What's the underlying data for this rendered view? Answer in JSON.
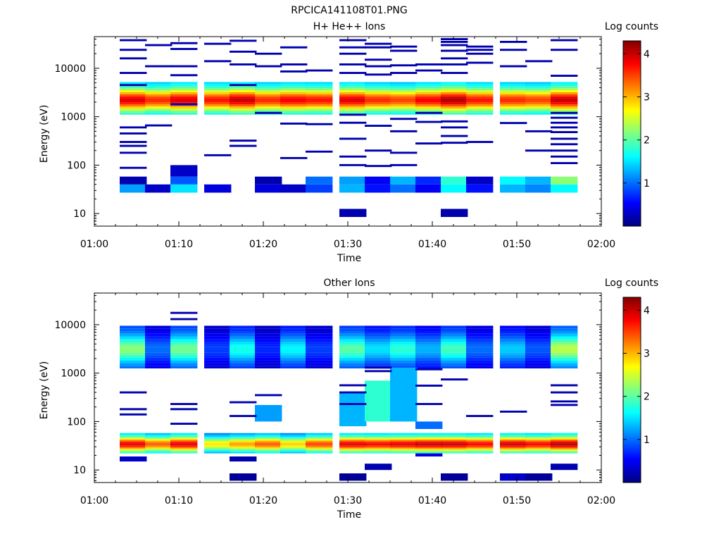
{
  "figure": {
    "title": "RPCICA141108T01.PNG"
  },
  "colormap": [
    "#000080",
    "#0000ff",
    "#0080ff",
    "#00ffff",
    "#80ff80",
    "#ffff00",
    "#ff8000",
    "#ff0000",
    "#800000"
  ],
  "chart_data": [
    {
      "type": "heatmap",
      "title": "H+ He++ Ions",
      "xlabel": "Time",
      "ylabel": "Energy (eV)",
      "xlim": [
        "01:00",
        "02:00"
      ],
      "xticks": [
        "01:00",
        "01:10",
        "01:20",
        "01:30",
        "01:40",
        "01:50",
        "02:00"
      ],
      "yscale": "log",
      "ylim": [
        5.5,
        45000
      ],
      "yticks": [
        "10",
        "100",
        "1000",
        "10000"
      ],
      "colorbar": {
        "label": "Log counts",
        "range": [
          0,
          4.3
        ],
        "ticks": [
          "1",
          "2",
          "3",
          "4"
        ]
      },
      "time_bins_start": [
        "01:03",
        "01:06",
        "01:09",
        "01:13",
        "01:16",
        "01:19",
        "01:22",
        "01:25",
        "01:29",
        "01:32",
        "01:35",
        "01:38",
        "01:41",
        "01:44",
        "01:48",
        "01:51",
        "01:54"
      ],
      "time_bin_minutes": 3.2,
      "core": {
        "energy_range_eV": [
          1100,
          5200
        ],
        "peak_log_counts_by_bin": [
          3.9,
          3.6,
          3.9,
          3.7,
          4.0,
          3.6,
          3.8,
          3.7,
          3.9,
          3.6,
          3.5,
          3.8,
          4.1,
          3.7,
          3.6,
          3.5,
          4.0
        ]
      },
      "low_energy_band": {
        "log_counts_by_bin": [
          {
            "range_eV": [
              27,
              40
            ],
            "log_counts": [
              1.2,
              0.3,
              1.5,
              0.4,
              0,
              0.4,
              0.3,
              0.8,
              1.3,
              0.6,
              1.0,
              0.5,
              1.6,
              0.6,
              1.3,
              1.1,
              1.6
            ]
          },
          {
            "range_eV": [
              40,
              58
            ],
            "log_counts": [
              0.2,
              0,
              0.9,
              0,
              0,
              0.2,
              0,
              1.0,
              1.2,
              0.5,
              1.3,
              0.7,
              1.8,
              0.3,
              1.6,
              1.3,
              2.2
            ]
          }
        ]
      },
      "sporadic_log_counts": 0.2,
      "sporadic_energy_bins_eV_by_bin": [
        [
          38000,
          24000,
          16000,
          8000,
          4500,
          600,
          450,
          300,
          250,
          180,
          88
        ],
        [
          30000,
          11000,
          660
        ],
        [
          33000,
          25000,
          11000,
          7200,
          1800
        ],
        [
          32000,
          14000,
          160
        ],
        [
          37000,
          22000,
          12000,
          4500,
          320,
          250
        ],
        [
          20000,
          11000,
          1200
        ],
        [
          27000,
          12000,
          8600,
          720,
          140
        ],
        [
          9000,
          700,
          190
        ],
        [
          38000,
          27000,
          20000,
          12000,
          8000,
          1100,
          750,
          350,
          150,
          100
        ],
        [
          32000,
          27000,
          15000,
          11000,
          7400,
          650,
          200,
          96
        ],
        [
          28000,
          23000,
          11500,
          8000,
          900,
          500,
          180,
          100
        ],
        [
          12000,
          9000,
          1200,
          780,
          280
        ],
        [
          40000,
          35000,
          30000,
          23000,
          16000,
          12000,
          8000,
          800,
          600,
          400,
          290
        ],
        [
          28000,
          24000,
          20000,
          13000,
          300
        ],
        [
          35000,
          24000,
          11000,
          740
        ],
        [
          14000,
          500,
          200
        ],
        [
          38000,
          24000,
          7000,
          1200,
          950,
          750,
          600,
          480,
          350,
          270,
          200,
          150,
          110
        ]
      ],
      "additional_cells": [
        {
          "bin": 2,
          "range_eV": [
            58,
            100
          ],
          "log_counts": 0.3
        },
        {
          "bin": 8,
          "range_eV": [
            8.5,
            12.5
          ],
          "log_counts": 0.2
        },
        {
          "bin": 12,
          "range_eV": [
            8.5,
            12.5
          ],
          "log_counts": 0.2
        }
      ]
    },
    {
      "type": "heatmap",
      "title": "Other Ions",
      "xlabel": "Time",
      "ylabel": "Energy (eV)",
      "xlim": [
        "01:00",
        "02:00"
      ],
      "xticks": [
        "01:00",
        "01:10",
        "01:20",
        "01:30",
        "01:40",
        "01:50",
        "02:00"
      ],
      "yscale": "log",
      "ylim": [
        5.5,
        45000
      ],
      "yticks": [
        "10",
        "100",
        "1000",
        "10000"
      ],
      "colorbar": {
        "label": "Log counts",
        "range": [
          0,
          4.3
        ],
        "ticks": [
          "1",
          "2",
          "3",
          "4"
        ]
      },
      "time_bins_start": [
        "01:03",
        "01:06",
        "01:09",
        "01:13",
        "01:16",
        "01:19",
        "01:22",
        "01:25",
        "01:29",
        "01:32",
        "01:35",
        "01:38",
        "01:41",
        "01:44",
        "01:48",
        "01:51",
        "01:54"
      ],
      "time_bin_minutes": 3.2,
      "low_energy_core": {
        "energy_range_eV": [
          22,
          58
        ],
        "peak_log_counts_by_bin": [
          3.9,
          3.4,
          3.9,
          2.8,
          3.1,
          3.4,
          2.9,
          3.5,
          3.9,
          3.8,
          3.9,
          4.0,
          4.0,
          3.8,
          4.0,
          3.8,
          4.1
        ]
      },
      "high_energy_band": {
        "energy_range_eV": [
          1250,
          9500
        ],
        "peak_log_counts_by_bin": [
          2.2,
          1.0,
          2.1,
          0.8,
          1.7,
          0.7,
          1.6,
          0.8,
          2.0,
          1.5,
          1.8,
          1.3,
          1.9,
          1.0,
          1.4,
          0.9,
          2.4
        ]
      },
      "mid_energy_cells": [
        {
          "bin": 5,
          "range_eV": [
            100,
            220
          ],
          "log_counts": 1.2
        },
        {
          "bin": 8,
          "range_eV": [
            80,
            400
          ],
          "log_counts": 1.3
        },
        {
          "bin": 9,
          "range_eV": [
            100,
            700
          ],
          "log_counts": 1.8
        },
        {
          "bin": 10,
          "range_eV": [
            100,
            1300
          ],
          "log_counts": 1.3
        },
        {
          "bin": 11,
          "range_eV": [
            70,
            100
          ],
          "log_counts": 1.0
        }
      ],
      "sporadic_log_counts": 0.2,
      "sporadic_energy_bins_eV_by_bin": [
        [
          400,
          180,
          140
        ],
        [],
        [
          17500,
          13000,
          230,
          180,
          90
        ],
        [],
        [
          250,
          130
        ],
        [
          350
        ],
        [],
        [],
        [
          560,
          400,
          230
        ],
        [
          1300,
          1100
        ],
        [],
        [
          1200,
          550,
          230
        ],
        [
          740
        ],
        [
          130
        ],
        [
          160
        ],
        [],
        [
          560,
          400,
          260,
          220
        ]
      ],
      "additional_cells": [
        {
          "bin": 0,
          "range_eV": [
            15,
            19
          ],
          "log_counts": 0.3
        },
        {
          "bin": 4,
          "range_eV": [
            15,
            19
          ],
          "log_counts": 0.2
        },
        {
          "bin": 4,
          "range_eV": [
            6,
            8.5
          ],
          "log_counts": 0.1
        },
        {
          "bin": 8,
          "range_eV": [
            6,
            8.5
          ],
          "log_counts": 0.1
        },
        {
          "bin": 9,
          "range_eV": [
            10,
            13.5
          ],
          "log_counts": 0.2
        },
        {
          "bin": 11,
          "range_eV": [
            19,
            22
          ],
          "log_counts": 0.4
        },
        {
          "bin": 12,
          "range_eV": [
            6,
            8.5
          ],
          "log_counts": 0.1
        },
        {
          "bin": 14,
          "range_eV": [
            6,
            8.5
          ],
          "log_counts": 0.3
        },
        {
          "bin": 15,
          "range_eV": [
            6,
            8.5
          ],
          "log_counts": 0.1
        },
        {
          "bin": 16,
          "range_eV": [
            10,
            13.5
          ],
          "log_counts": 0.2
        }
      ]
    }
  ]
}
